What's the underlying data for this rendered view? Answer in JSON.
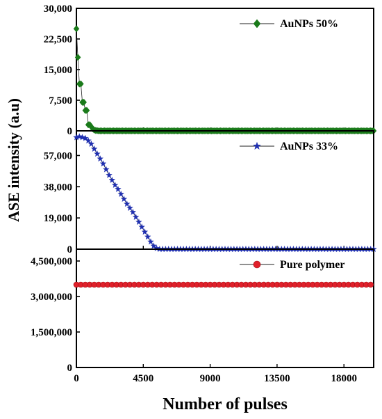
{
  "chart_data": {
    "type": "scatter",
    "xlabel": "Number of pulses",
    "ylabel": "ASE intensity (a.u)",
    "xlim": [
      0,
      20000
    ],
    "xticks": [
      0,
      4500,
      9000,
      13500,
      18000
    ],
    "xtick_labels": [
      "0",
      "4500",
      "9000",
      "13500",
      "18000"
    ],
    "grid": false,
    "legend_placement": "top-right",
    "panels": [
      {
        "name": "AuNPs 50%",
        "marker": "diamond",
        "color": "#1a7a1a",
        "ylim": [
          0,
          30000
        ],
        "yticks": [
          0,
          7500,
          15000,
          22500,
          30000
        ],
        "ytick_labels": [
          "0",
          "7,500",
          "15,000",
          "22,500",
          "30,000"
        ],
        "x": [
          0,
          100,
          200,
          300,
          400,
          500,
          600,
          700,
          800,
          900,
          1000,
          1100,
          1200,
          1300,
          1400,
          1500,
          1600,
          1700,
          1800,
          1900,
          2000,
          2100,
          2200,
          2300,
          2400,
          2500,
          2600,
          2700,
          2800,
          2900,
          3000,
          3100,
          3200,
          3300,
          3400,
          3500,
          3600,
          3700,
          3800,
          3900,
          4000,
          4100,
          4200,
          4300,
          4400,
          4500,
          4600,
          4700,
          4800,
          4900,
          5000,
          5100,
          5200,
          5300,
          5400,
          5500,
          5600,
          5700,
          5800,
          5900,
          6000,
          6100,
          6200,
          6300,
          6400,
          6500,
          6600,
          6700,
          6800,
          6900,
          7000,
          7100,
          7200,
          7300,
          7400,
          7500,
          7600,
          7700,
          7800,
          7900,
          8000,
          8100,
          8200,
          8300,
          8400,
          8500,
          8600,
          8700,
          8800,
          8900,
          9000,
          9100,
          9200,
          9300,
          9400,
          9500,
          9600,
          9700,
          9800,
          9900,
          10000,
          10100,
          10200,
          10300,
          10400,
          10500,
          10600,
          10700,
          10800,
          10900,
          11000,
          11100,
          11200,
          11300,
          11400,
          11500,
          11600,
          11700,
          11800,
          11900,
          12000,
          12100,
          12200,
          12300,
          12400,
          12500,
          12600,
          12700,
          12800,
          12900,
          13000,
          13100,
          13200,
          13300,
          13400,
          13500,
          13600,
          13700,
          13800,
          13900,
          14000,
          14100,
          14200,
          14300,
          14400,
          14500,
          14600,
          14700,
          14800,
          14900,
          15000,
          15100,
          15200,
          15300,
          15400,
          15500,
          15600,
          15700,
          15800,
          15900,
          16000,
          16100,
          16200,
          16300,
          16400,
          16500,
          16600,
          16700,
          16800,
          16900,
          17000,
          17100,
          17200,
          17300,
          17400,
          17500,
          17600,
          17700,
          17800,
          17900,
          18000,
          18100,
          18200,
          18300,
          18400,
          18500,
          18600,
          18700,
          18800,
          18900,
          19000,
          19100,
          19200,
          19300,
          19400,
          19500,
          19600,
          19700,
          19800,
          19900,
          20000
        ],
        "y": [
          25000,
          18000,
          11500,
          11500,
          7000,
          7000,
          5000,
          5000,
          1500,
          1500,
          1000,
          500,
          200,
          100,
          50,
          0,
          0,
          0,
          0,
          0,
          0,
          0,
          0,
          0,
          0,
          0,
          0,
          0,
          0,
          0,
          0,
          0,
          0,
          0,
          0,
          0,
          0,
          0,
          0,
          0,
          0,
          0,
          0,
          0,
          0,
          0,
          0,
          0,
          0,
          0,
          0,
          0,
          0,
          0,
          0,
          0,
          0,
          0,
          0,
          0,
          0,
          0,
          0,
          0,
          0,
          0,
          0,
          0,
          0,
          0,
          0,
          0,
          0,
          0,
          0,
          0,
          0,
          0,
          0,
          0,
          0,
          0,
          0,
          0,
          0,
          0,
          0,
          0,
          0,
          0,
          0,
          0,
          0,
          0,
          0,
          0,
          0,
          0,
          0,
          0,
          0,
          0,
          0,
          0,
          0,
          0,
          0,
          0,
          0,
          0,
          0,
          0,
          0,
          0,
          0,
          0,
          0,
          0,
          0,
          0,
          0,
          0,
          0,
          0,
          0,
          0,
          0,
          0,
          0,
          0,
          0,
          0,
          0,
          0,
          0,
          0,
          0,
          0,
          0,
          0,
          0,
          0,
          0,
          0,
          0,
          0,
          0,
          0,
          0,
          0,
          0,
          0,
          0,
          0,
          0,
          0,
          0,
          0,
          0,
          0,
          0,
          0,
          0,
          0,
          0,
          0,
          0,
          0,
          0,
          0,
          0,
          0,
          0,
          0,
          0,
          0,
          0,
          0,
          0,
          0,
          0,
          0,
          0,
          0,
          0,
          0,
          0,
          0,
          0,
          0,
          0,
          0,
          0,
          0,
          0,
          0,
          0,
          0,
          0,
          0,
          0
        ]
      },
      {
        "name": "AuNPs 33%",
        "marker": "star",
        "color": "#1f2fb0",
        "ylim": [
          0,
          72000
        ],
        "yticks": [
          0,
          19000,
          38000,
          57000
        ],
        "ytick_labels": [
          "0",
          "19,000",
          "38,000",
          "57,000"
        ],
        "x": [
          0,
          200,
          400,
          600,
          800,
          1000,
          1200,
          1400,
          1600,
          1800,
          2000,
          2200,
          2400,
          2600,
          2800,
          3000,
          3200,
          3400,
          3600,
          3800,
          4000,
          4200,
          4400,
          4600,
          4800,
          5000,
          5200,
          5400,
          5600,
          5800,
          6000,
          6200,
          6400,
          6600,
          6800,
          7000,
          7200,
          7400,
          7600,
          7800,
          8000,
          8200,
          8400,
          8600,
          8800,
          9000,
          9200,
          9400,
          9600,
          9800,
          10000,
          10200,
          10400,
          10600,
          10800,
          11000,
          11200,
          11400,
          11600,
          11800,
          12000,
          12200,
          12400,
          12600,
          12800,
          13000,
          13200,
          13400,
          13600,
          13800,
          14000,
          14200,
          14400,
          14600,
          14800,
          15000,
          15200,
          15400,
          15600,
          15800,
          16000,
          16200,
          16400,
          16600,
          16800,
          17000,
          17200,
          17400,
          17600,
          17800,
          18000,
          18200,
          18400,
          18600,
          18800,
          19000,
          19200,
          19400,
          19600,
          19800,
          20000
        ],
        "y": [
          68000,
          68500,
          68000,
          67500,
          66000,
          64000,
          61000,
          58000,
          55000,
          52000,
          48500,
          45000,
          42000,
          39000,
          36500,
          33500,
          30500,
          27500,
          25000,
          22500,
          19500,
          16500,
          13500,
          10500,
          7500,
          4500,
          2000,
          500,
          0,
          0,
          0,
          0,
          0,
          0,
          0,
          0,
          0,
          0,
          0,
          0,
          0,
          0,
          0,
          0,
          0,
          0,
          0,
          0,
          0,
          0,
          0,
          0,
          0,
          0,
          0,
          0,
          0,
          0,
          0,
          0,
          0,
          0,
          0,
          0,
          0,
          0,
          0,
          0,
          0,
          0,
          0,
          0,
          0,
          0,
          0,
          0,
          0,
          0,
          0,
          0,
          0,
          0,
          0,
          0,
          0,
          0,
          0,
          0,
          0,
          0,
          0,
          0,
          0,
          0,
          0,
          0,
          0,
          0,
          0,
          0,
          0
        ]
      },
      {
        "name": "Pure polymer",
        "marker": "circle",
        "color": "#e0202a",
        "ylim": [
          0,
          5000000
        ],
        "yticks": [
          0,
          1500000,
          3000000,
          4500000
        ],
        "ytick_labels": [
          "0",
          "1,500,000",
          "3,000,000",
          "4,500,000"
        ],
        "x": [
          0,
          300,
          600,
          900,
          1200,
          1500,
          1800,
          2100,
          2400,
          2700,
          3000,
          3300,
          3600,
          3900,
          4200,
          4500,
          4800,
          5100,
          5400,
          5700,
          6000,
          6300,
          6600,
          6900,
          7200,
          7500,
          7800,
          8100,
          8400,
          8700,
          9000,
          9300,
          9600,
          9900,
          10200,
          10500,
          10800,
          11100,
          11400,
          11700,
          12000,
          12300,
          12600,
          12900,
          13200,
          13500,
          13800,
          14100,
          14400,
          14700,
          15000,
          15300,
          15600,
          15900,
          16200,
          16500,
          16800,
          17100,
          17400,
          17700,
          18000,
          18300,
          18600,
          18900,
          19200,
          19500,
          19800
        ],
        "y": [
          3500000,
          3500000,
          3500000,
          3500000,
          3500000,
          3500000,
          3500000,
          3500000,
          3500000,
          3500000,
          3500000,
          3500000,
          3500000,
          3500000,
          3500000,
          3500000,
          3500000,
          3500000,
          3500000,
          3500000,
          3500000,
          3500000,
          3500000,
          3500000,
          3500000,
          3500000,
          3500000,
          3500000,
          3500000,
          3500000,
          3500000,
          3500000,
          3500000,
          3500000,
          3500000,
          3500000,
          3500000,
          3500000,
          3500000,
          3500000,
          3500000,
          3500000,
          3500000,
          3500000,
          3500000,
          3500000,
          3500000,
          3500000,
          3500000,
          3500000,
          3500000,
          3500000,
          3500000,
          3500000,
          3500000,
          3500000,
          3500000,
          3500000,
          3500000,
          3500000,
          3500000,
          3500000,
          3500000,
          3500000,
          3500000,
          3500000,
          3500000
        ]
      }
    ]
  }
}
